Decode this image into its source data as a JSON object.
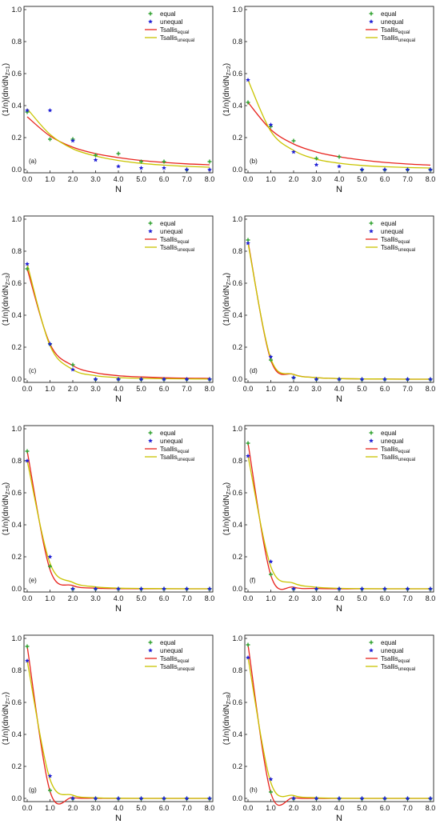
{
  "figure": {
    "xlabel": "N",
    "legend_labels": [
      "equal",
      "unequal",
      "Tsallis",
      "Tsallis"
    ],
    "legend_subscripts": [
      "",
      "",
      "equal",
      "unequal"
    ]
  },
  "colors": {
    "equal_marker": "#2ca02c",
    "unequal_marker": "#1f1fd6",
    "tsallis_equal": "#e8231d",
    "tsallis_unequal": "#c9c400"
  },
  "chart_data": [
    {
      "type": "scatter",
      "panel_label": "(a)",
      "ylabel": "(1/n)(dn/dN",
      "ylabel_sub": "Z=1",
      "xlabel": "N",
      "xlim": [
        0,
        8
      ],
      "ylim": [
        0,
        1.0
      ],
      "xticks": [
        "0.0",
        "1.0",
        "2.0",
        "3.0",
        "4.0",
        "5.0",
        "6.0",
        "7.0",
        "8.0"
      ],
      "yticks": [
        "0.0",
        "0.2",
        "0.4",
        "0.6",
        "0.8",
        "1.0"
      ],
      "legend_position": "top-right",
      "x": [
        0,
        1,
        2,
        3,
        4,
        5,
        6,
        7,
        8
      ],
      "series": [
        {
          "name": "equal",
          "kind": "marker",
          "values": [
            0.36,
            0.19,
            0.19,
            0.09,
            0.1,
            0.05,
            0.05,
            0.0,
            0.05
          ]
        },
        {
          "name": "unequal",
          "kind": "marker",
          "values": [
            0.37,
            0.37,
            0.18,
            0.06,
            0.02,
            0.01,
            0.01,
            0.0,
            0.0
          ]
        },
        {
          "name": "Tsallis equal",
          "kind": "curve",
          "values": [
            0.33,
            0.21,
            0.14,
            0.1,
            0.075,
            0.057,
            0.045,
            0.036,
            0.03
          ]
        },
        {
          "name": "Tsallis unequal",
          "kind": "curve",
          "values": [
            0.38,
            0.22,
            0.13,
            0.085,
            0.057,
            0.039,
            0.028,
            0.02,
            0.015
          ]
        }
      ]
    },
    {
      "type": "scatter",
      "panel_label": "(b)",
      "ylabel": "(1/n)(dn/dN",
      "ylabel_sub": "Z=2",
      "xlabel": "N",
      "xlim": [
        0,
        8
      ],
      "ylim": [
        0,
        1.0
      ],
      "xticks": [
        "0.0",
        "1.0",
        "2.0",
        "3.0",
        "4.0",
        "5.0",
        "6.0",
        "7.0",
        "8.0"
      ],
      "yticks": [
        "0.0",
        "0.2",
        "0.4",
        "0.6",
        "0.8",
        "1.0"
      ],
      "legend_position": "top-right",
      "x": [
        0,
        1,
        2,
        3,
        4,
        5,
        6,
        7,
        8
      ],
      "series": [
        {
          "name": "equal",
          "kind": "marker",
          "values": [
            0.42,
            0.27,
            0.18,
            0.07,
            0.08,
            0.0,
            0.0,
            0.0,
            0.0
          ]
        },
        {
          "name": "unequal",
          "kind": "marker",
          "values": [
            0.56,
            0.28,
            0.11,
            0.03,
            0.02,
            0.0,
            0.0,
            0.0,
            0.0
          ]
        },
        {
          "name": "Tsallis equal",
          "kind": "curve",
          "values": [
            0.42,
            0.25,
            0.16,
            0.11,
            0.08,
            0.06,
            0.045,
            0.035,
            0.028
          ]
        },
        {
          "name": "Tsallis unequal",
          "kind": "curve",
          "values": [
            0.56,
            0.24,
            0.12,
            0.065,
            0.04,
            0.026,
            0.018,
            0.013,
            0.01
          ]
        }
      ]
    },
    {
      "type": "scatter",
      "panel_label": "(c)",
      "ylabel": "(1/n)(dn/dN",
      "ylabel_sub": "Z=3",
      "xlabel": "N",
      "xlim": [
        0,
        8
      ],
      "ylim": [
        0,
        1.0
      ],
      "xticks": [
        "0.0",
        "1.0",
        "2.0",
        "3.0",
        "4.0",
        "5.0",
        "6.0",
        "7.0",
        "8.0"
      ],
      "yticks": [
        "0.0",
        "0.2",
        "0.4",
        "0.6",
        "0.8",
        "1.0"
      ],
      "legend_position": "top-right",
      "x": [
        0,
        1,
        2,
        3,
        4,
        5,
        6,
        7,
        8
      ],
      "series": [
        {
          "name": "equal",
          "kind": "marker",
          "values": [
            0.69,
            0.22,
            0.09,
            0.0,
            0.0,
            0.0,
            0.0,
            0.0,
            0.0
          ]
        },
        {
          "name": "unequal",
          "kind": "marker",
          "values": [
            0.72,
            0.22,
            0.06,
            0.0,
            0.0,
            0.0,
            0.0,
            0.0,
            0.0
          ]
        },
        {
          "name": "Tsallis equal",
          "kind": "curve",
          "values": [
            0.69,
            0.22,
            0.085,
            0.04,
            0.022,
            0.014,
            0.009,
            0.006,
            0.005
          ]
        },
        {
          "name": "Tsallis unequal",
          "kind": "curve",
          "values": [
            0.72,
            0.21,
            0.06,
            0.022,
            0.01,
            0.005,
            0.003,
            0.002,
            0.001
          ]
        }
      ]
    },
    {
      "type": "scatter",
      "panel_label": "(d)",
      "ylabel": "(1/n)(dn/dN",
      "ylabel_sub": "Z=4",
      "xlabel": "N",
      "xlim": [
        0,
        8
      ],
      "ylim": [
        0,
        1.0
      ],
      "xticks": [
        "0.0",
        "1.0",
        "2.0",
        "3.0",
        "4.0",
        "5.0",
        "6.0",
        "7.0",
        "8.0"
      ],
      "yticks": [
        "0.0",
        "0.2",
        "0.4",
        "0.6",
        "0.8",
        "1.0"
      ],
      "legend_position": "top-right",
      "x": [
        0,
        1,
        2,
        3,
        4,
        5,
        6,
        7,
        8
      ],
      "series": [
        {
          "name": "equal",
          "kind": "marker",
          "values": [
            0.87,
            0.12,
            0.01,
            0.0,
            0.0,
            0.0,
            0.0,
            0.0,
            0.0
          ]
        },
        {
          "name": "unequal",
          "kind": "marker",
          "values": [
            0.85,
            0.14,
            0.01,
            0.0,
            0.0,
            0.0,
            0.0,
            0.0,
            0.0
          ]
        },
        {
          "name": "Tsallis equal",
          "kind": "curve",
          "values": [
            0.86,
            0.12,
            0.03,
            0.01,
            0.004,
            0.002,
            0.001,
            0.0,
            0.0
          ]
        },
        {
          "name": "Tsallis unequal",
          "kind": "curve",
          "values": [
            0.85,
            0.13,
            0.03,
            0.01,
            0.004,
            0.002,
            0.001,
            0.0,
            0.0
          ]
        }
      ]
    },
    {
      "type": "scatter",
      "panel_label": "(e)",
      "ylabel": "(1/n)(dn/dN",
      "ylabel_sub": "Z=5",
      "xlabel": "N",
      "xlim": [
        0,
        8
      ],
      "ylim": [
        0,
        1.0
      ],
      "xticks": [
        "0.0",
        "1.0",
        "2.0",
        "3.0",
        "4.0",
        "5.0",
        "6.0",
        "7.0",
        "8.0"
      ],
      "yticks": [
        "0.0",
        "0.2",
        "0.4",
        "0.6",
        "0.8",
        "1.0"
      ],
      "legend_position": "top-right",
      "x": [
        0,
        1,
        2,
        3,
        4,
        5,
        6,
        7,
        8
      ],
      "series": [
        {
          "name": "equal",
          "kind": "marker",
          "values": [
            0.86,
            0.14,
            0.0,
            0.0,
            0.0,
            0.0,
            0.0,
            0.0,
            0.0
          ]
        },
        {
          "name": "unequal",
          "kind": "marker",
          "values": [
            0.8,
            0.2,
            0.0,
            0.0,
            0.0,
            0.0,
            0.0,
            0.0,
            0.0
          ]
        },
        {
          "name": "Tsallis equal",
          "kind": "curve",
          "values": [
            0.86,
            0.12,
            0.02,
            0.004,
            0.001,
            0.0,
            0.0,
            0.0,
            0.0
          ]
        },
        {
          "name": "Tsallis unequal",
          "kind": "curve",
          "values": [
            0.8,
            0.16,
            0.04,
            0.012,
            0.004,
            0.002,
            0.001,
            0.0,
            0.0
          ]
        }
      ]
    },
    {
      "type": "scatter",
      "panel_label": "(f)",
      "ylabel": "(1/n)(dn/dN",
      "ylabel_sub": "Z=6",
      "xlabel": "N",
      "xlim": [
        0,
        8
      ],
      "ylim": [
        0,
        1.0
      ],
      "xticks": [
        "0.0",
        "1.0",
        "2.0",
        "3.0",
        "4.0",
        "5.0",
        "6.0",
        "7.0",
        "8.0"
      ],
      "yticks": [
        "0.0",
        "0.2",
        "0.4",
        "0.6",
        "0.8",
        "1.0"
      ],
      "legend_position": "top-right",
      "x": [
        0,
        1,
        2,
        3,
        4,
        5,
        6,
        7,
        8
      ],
      "series": [
        {
          "name": "equal",
          "kind": "marker",
          "values": [
            0.91,
            0.09,
            0.0,
            0.0,
            0.0,
            0.0,
            0.0,
            0.0,
            0.0
          ]
        },
        {
          "name": "unequal",
          "kind": "marker",
          "values": [
            0.83,
            0.17,
            0.0,
            0.0,
            0.0,
            0.0,
            0.0,
            0.0,
            0.0
          ]
        },
        {
          "name": "Tsallis equal",
          "kind": "curve",
          "values": [
            0.91,
            0.085,
            0.01,
            0.002,
            0.0,
            0.0,
            0.0,
            0.0,
            0.0
          ]
        },
        {
          "name": "Tsallis unequal",
          "kind": "curve",
          "values": [
            0.83,
            0.14,
            0.035,
            0.01,
            0.003,
            0.001,
            0.0,
            0.0,
            0.0
          ]
        }
      ]
    },
    {
      "type": "scatter",
      "panel_label": "(g)",
      "ylabel": "(1/n)(dn/dN",
      "ylabel_sub": "Z=7",
      "xlabel": "N",
      "xlim": [
        0,
        8
      ],
      "ylim": [
        0,
        1.0
      ],
      "xticks": [
        "0.0",
        "1.0",
        "2.0",
        "3.0",
        "4.0",
        "5.0",
        "6.0",
        "7.0",
        "8.0"
      ],
      "yticks": [
        "0.0",
        "0.2",
        "0.4",
        "0.6",
        "0.8",
        "1.0"
      ],
      "legend_position": "top-right",
      "x": [
        0,
        1,
        2,
        3,
        4,
        5,
        6,
        7,
        8
      ],
      "series": [
        {
          "name": "equal",
          "kind": "marker",
          "values": [
            0.95,
            0.05,
            0.0,
            0.0,
            0.0,
            0.0,
            0.0,
            0.0,
            0.0
          ]
        },
        {
          "name": "unequal",
          "kind": "marker",
          "values": [
            0.86,
            0.14,
            0.0,
            0.0,
            0.0,
            0.0,
            0.0,
            0.0,
            0.0
          ]
        },
        {
          "name": "Tsallis equal",
          "kind": "curve",
          "values": [
            0.95,
            0.045,
            0.005,
            0.001,
            0.0,
            0.0,
            0.0,
            0.0,
            0.0
          ]
        },
        {
          "name": "Tsallis unequal",
          "kind": "curve",
          "values": [
            0.86,
            0.12,
            0.02,
            0.004,
            0.001,
            0.0,
            0.0,
            0.0,
            0.0
          ]
        }
      ]
    },
    {
      "type": "scatter",
      "panel_label": "(h)",
      "ylabel": "(1/n)(dn/dN",
      "ylabel_sub": "Z=8",
      "xlabel": "N",
      "xlim": [
        0,
        8
      ],
      "ylim": [
        0,
        1.0
      ],
      "xticks": [
        "0.0",
        "1.0",
        "2.0",
        "3.0",
        "4.0",
        "5.0",
        "6.0",
        "7.0",
        "8.0"
      ],
      "yticks": [
        "0.0",
        "0.2",
        "0.4",
        "0.6",
        "0.8",
        "1.0"
      ],
      "legend_position": "top-right",
      "x": [
        0,
        1,
        2,
        3,
        4,
        5,
        6,
        7,
        8
      ],
      "series": [
        {
          "name": "equal",
          "kind": "marker",
          "values": [
            0.96,
            0.04,
            0.0,
            0.0,
            0.0,
            0.0,
            0.0,
            0.0,
            0.0
          ]
        },
        {
          "name": "unequal",
          "kind": "marker",
          "values": [
            0.88,
            0.12,
            0.0,
            0.0,
            0.0,
            0.0,
            0.0,
            0.0,
            0.0
          ]
        },
        {
          "name": "Tsallis equal",
          "kind": "curve",
          "values": [
            0.96,
            0.035,
            0.004,
            0.0,
            0.0,
            0.0,
            0.0,
            0.0,
            0.0
          ]
        },
        {
          "name": "Tsallis unequal",
          "kind": "curve",
          "values": [
            0.88,
            0.1,
            0.018,
            0.004,
            0.001,
            0.0,
            0.0,
            0.0,
            0.0
          ]
        }
      ]
    }
  ]
}
